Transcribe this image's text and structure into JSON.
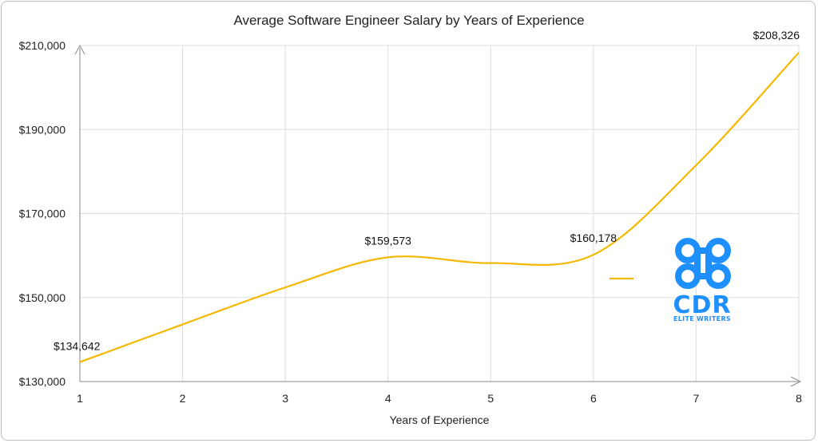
{
  "chart_data": {
    "type": "line",
    "title": "Average Software Engineer Salary by Years of Experience",
    "xlabel": "Years of Experience",
    "ylabel": "",
    "x": [
      1,
      2,
      3,
      4,
      5,
      6,
      7,
      8
    ],
    "x_tick_labels": [
      "1",
      "2",
      "3",
      "4",
      "5",
      "6",
      "7",
      "8"
    ],
    "ylim": [
      130000,
      210000
    ],
    "y_ticks": [
      130000,
      150000,
      170000,
      190000,
      210000
    ],
    "y_tick_labels": [
      "$130,000",
      "$150,000",
      "$170,000",
      "$190,000",
      "$210,000"
    ],
    "series": [
      {
        "name": "",
        "color": "#F5B800",
        "values": [
          134642,
          143600,
          152400,
          159573,
          158200,
          160178,
          181500,
          208326
        ],
        "data_labels": [
          {
            "x": 1,
            "text": "$134,642"
          },
          {
            "x": 4,
            "text": "$159,573"
          },
          {
            "x": 6,
            "text": "$160,178"
          },
          {
            "x": 8,
            "text": "$208,326"
          }
        ]
      }
    ],
    "grid": true,
    "legend": "right"
  },
  "logo": {
    "text": "CDR",
    "subtext": "ELITE WRITERS",
    "color": "#1E8FFF"
  }
}
